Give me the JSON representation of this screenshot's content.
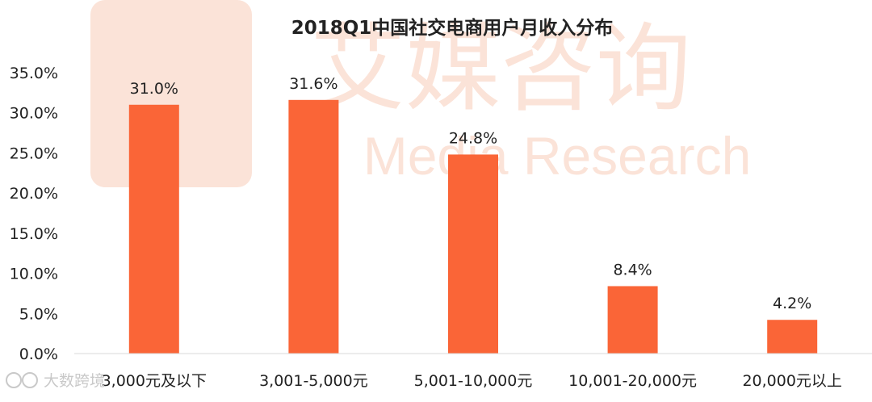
{
  "watermark": {
    "brand_name": "艾媒咨询",
    "brand_sub": "Media Research",
    "color": "#fbe3d8"
  },
  "source_mark": {
    "text": "大数跨境",
    "color": "#c9c9c9"
  },
  "colors": {
    "bar": "#fa6537",
    "axis": "#d9d9d9",
    "text": "#222222"
  },
  "chart_data": {
    "type": "bar",
    "title": "2018Q1中国社交电商用户月收入分布",
    "categories": [
      "3,000元及以下",
      "3,001-5,000元",
      "5,001-10,000元",
      "10,001-20,000元",
      "20,000元以上"
    ],
    "values": [
      31.0,
      31.6,
      24.8,
      8.4,
      4.2
    ],
    "data_labels": [
      "31.0%",
      "31.6%",
      "24.8%",
      "8.4%",
      "4.2%"
    ],
    "y_ticks": [
      "0.0%",
      "5.0%",
      "10.0%",
      "15.0%",
      "20.0%",
      "25.0%",
      "30.0%",
      "35.0%"
    ],
    "ylim": [
      0,
      35
    ],
    "xlabel": "",
    "ylabel": "",
    "grid": false,
    "legend": "none"
  }
}
